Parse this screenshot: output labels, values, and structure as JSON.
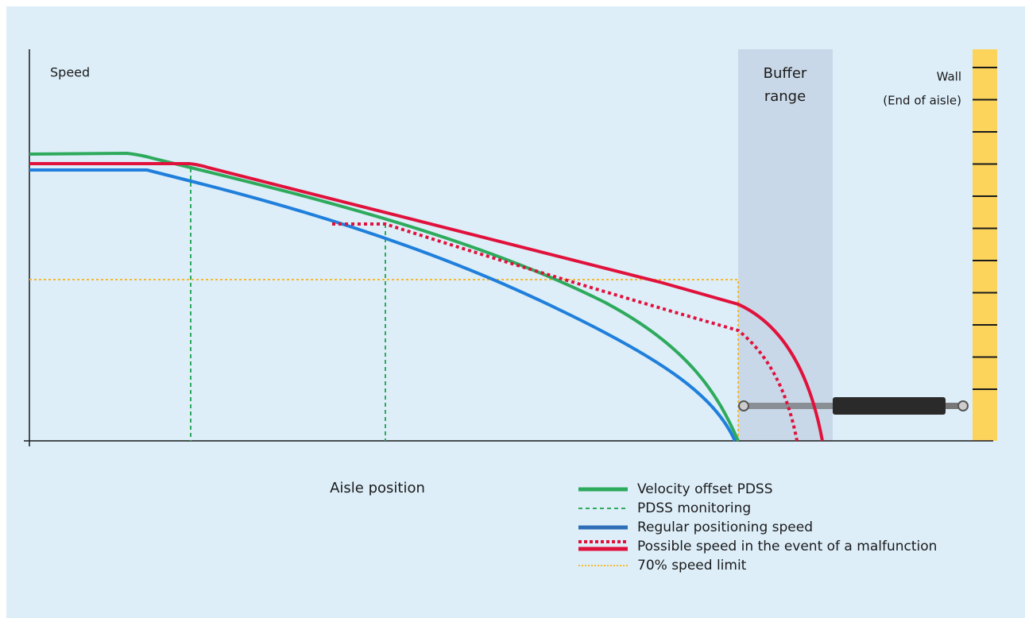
{
  "axis_labels": {
    "y": "Speed",
    "x": "Aisle position"
  },
  "buffer_range": {
    "lines": [
      "Buffer",
      "range"
    ]
  },
  "wall": {
    "lines": [
      "Wall",
      "(End of aisle)"
    ]
  },
  "legend": [
    "Velocity offset PDSS",
    "PDSS monitoring",
    "Regular positioning speed",
    "Possible speed in the event of a malfunction",
    "70% speed limit"
  ]
}
